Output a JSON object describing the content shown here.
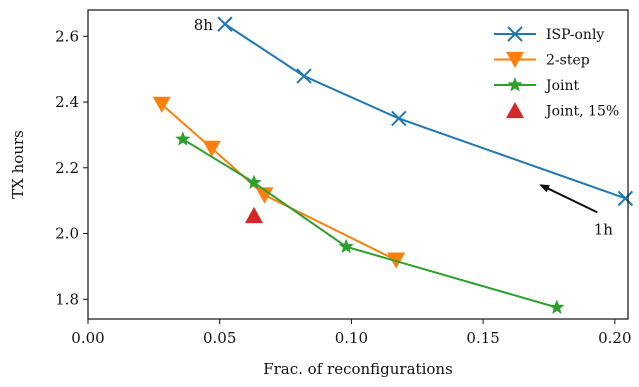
{
  "chart_data": {
    "type": "line",
    "title": "",
    "xlabel": "Frac. of reconfigurations",
    "ylabel": "TX hours",
    "xlim": [
      0.0,
      0.205
    ],
    "ylim": [
      1.74,
      2.68
    ],
    "xticks": [
      0.0,
      0.05,
      0.1,
      0.15,
      0.2
    ],
    "xtick_labels": [
      "0.00",
      "0.05",
      "0.10",
      "0.15",
      "0.20"
    ],
    "yticks": [
      1.8,
      2.0,
      2.2,
      2.4,
      2.6
    ],
    "ytick_labels": [
      "1.8",
      "2.0",
      "2.2",
      "2.4",
      "2.6"
    ],
    "grid": false,
    "legend_position": "top-right",
    "series": [
      {
        "name": "ISP-only",
        "color": "#1f77b4",
        "marker": "x",
        "line": true,
        "points": [
          [
            0.052,
            2.637
          ],
          [
            0.082,
            2.479
          ],
          [
            0.118,
            2.35
          ],
          [
            0.204,
            2.107
          ]
        ]
      },
      {
        "name": "2-step",
        "color": "#ff7f0e",
        "marker": "triangle-down",
        "line": true,
        "points": [
          [
            0.028,
            2.393
          ],
          [
            0.047,
            2.259
          ],
          [
            0.067,
            2.117
          ],
          [
            0.117,
            1.919
          ]
        ]
      },
      {
        "name": "Joint",
        "color": "#2ca02c",
        "marker": "star",
        "line": true,
        "points": [
          [
            0.036,
            2.287
          ],
          [
            0.063,
            2.155
          ],
          [
            0.098,
            1.96
          ],
          [
            0.178,
            1.775
          ]
        ]
      },
      {
        "name": "Joint, 15%",
        "color": "#d62728",
        "marker": "triangle-up",
        "line": false,
        "points": [
          [
            0.063,
            2.055
          ]
        ]
      }
    ],
    "annotations": [
      {
        "text": "8h",
        "x": 0.052,
        "y": 2.637
      },
      {
        "text": "1h",
        "x": 0.204,
        "y": 2.107,
        "arrow_target": [
          0.172,
          2.147
        ]
      }
    ]
  }
}
